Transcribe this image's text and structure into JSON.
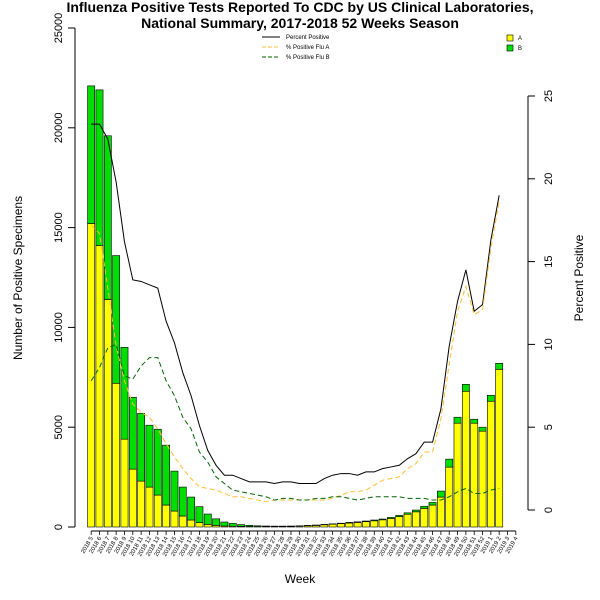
{
  "chart_data": {
    "type": "bar",
    "title_line1": "Influenza Positive Tests Reported To CDC by US Clinical Laboratories,",
    "title_line2": "National Summary, 2017-2018 52 Weeks Season",
    "xlabel": "Week",
    "ylabel": "Number of Positive Specimens",
    "ylabel_right": "Percent Positive",
    "ylim": [
      0,
      25000
    ],
    "ylim_right": [
      0,
      25
    ],
    "y_ticks": [
      "0",
      "5000",
      "10000",
      "15000",
      "20000",
      "25000"
    ],
    "y_ticks_right": [
      "0",
      "5",
      "10",
      "15",
      "20",
      "25"
    ],
    "categories": [
      "2018 5",
      "2018 6",
      "2018 7",
      "2018 8",
      "2018 9",
      "2018 10",
      "2018 11",
      "2018 12",
      "2018 13",
      "2018 14",
      "2018 15",
      "2018 16",
      "2018 17",
      "2018 18",
      "2018 19",
      "2018 20",
      "2018 21",
      "2018 22",
      "2018 23",
      "2018 24",
      "2018 25",
      "2018 26",
      "2018 27",
      "2018 28",
      "2018 29",
      "2018 30",
      "2018 31",
      "2018 32",
      "2018 33",
      "2018 34",
      "2018 35",
      "2018 36",
      "2018 37",
      "2018 38",
      "2018 39",
      "2018 40",
      "2018 41",
      "2018 42",
      "2018 43",
      "2018 44",
      "2018 45",
      "2018 46",
      "2018 47",
      "2018 48",
      "2018 49",
      "2018 50",
      "2018 51",
      "2018 52",
      "2019 1",
      "2019 2",
      "2019 3",
      "2019 4"
    ],
    "series": [
      {
        "name": "A",
        "color": "#ffff00",
        "values": [
          15200,
          14100,
          11400,
          7200,
          4400,
          2900,
          2300,
          2000,
          1600,
          1100,
          800,
          550,
          350,
          220,
          130,
          80,
          50,
          40,
          30,
          25,
          20,
          20,
          20,
          25,
          30,
          40,
          60,
          80,
          110,
          140,
          170,
          200,
          230,
          270,
          310,
          360,
          430,
          520,
          640,
          760,
          930,
          1100,
          1500,
          3000,
          5200,
          6800,
          5200,
          4800,
          6300,
          7900,
          0,
          0
        ]
      },
      {
        "name": "B",
        "color": "#00dd00",
        "values": [
          6900,
          7800,
          8200,
          6400,
          4600,
          3600,
          3400,
          3100,
          3300,
          3000,
          2000,
          1450,
          1150,
          800,
          520,
          330,
          200,
          140,
          90,
          60,
          40,
          30,
          25,
          20,
          20,
          20,
          20,
          20,
          20,
          20,
          20,
          30,
          30,
          30,
          40,
          40,
          50,
          60,
          70,
          90,
          110,
          130,
          300,
          400,
          300,
          350,
          200,
          200,
          300,
          300,
          0,
          0
        ]
      }
    ],
    "lines": [
      {
        "name": "Percent Positive",
        "color": "#000000",
        "dash": "solid",
        "values": [
          23.3,
          23.3,
          22.4,
          19.8,
          16.2,
          13.9,
          13.8,
          13.6,
          13.4,
          11.4,
          10.1,
          8.3,
          6.9,
          5.1,
          3.6,
          2.7,
          2.1,
          2.1,
          1.9,
          1.7,
          1.7,
          1.7,
          1.6,
          1.7,
          1.7,
          1.6,
          1.6,
          1.6,
          1.9,
          2.1,
          2.2,
          2.2,
          2.1,
          2.3,
          2.3,
          2.5,
          2.6,
          2.7,
          3.1,
          3.4,
          4.1,
          4.1,
          6.1,
          9.9,
          12.6,
          14.5,
          12.0,
          12.4,
          16.3,
          19.0,
          0,
          0
        ]
      },
      {
        "name": "% Positive Flu A",
        "color": "#ffbf33",
        "dash": "dashed",
        "values": [
          17.2,
          16.7,
          13.4,
          9.9,
          7.8,
          6.4,
          5.9,
          5.6,
          4.9,
          4.0,
          3.2,
          2.5,
          1.9,
          1.4,
          1.3,
          1.2,
          1.0,
          0.8,
          0.8,
          0.7,
          0.6,
          0.5,
          0.6,
          0.6,
          0.6,
          0.6,
          0.6,
          0.6,
          0.6,
          0.7,
          0.9,
          1.1,
          1.1,
          1.2,
          1.5,
          1.8,
          1.9,
          2.0,
          2.5,
          2.8,
          3.5,
          3.5,
          5.5,
          8.8,
          12.0,
          13.5,
          11.8,
          12.1,
          15.8,
          18.6,
          0,
          0
        ]
      },
      {
        "name": "% Positive Flu B",
        "color": "#006600",
        "dash": "dashed",
        "values": [
          7.8,
          8.6,
          9.8,
          10.0,
          8.1,
          7.9,
          8.7,
          9.2,
          9.2,
          7.8,
          6.9,
          5.6,
          4.9,
          3.5,
          2.9,
          2.0,
          1.6,
          1.2,
          1.1,
          1.0,
          0.9,
          0.8,
          0.6,
          0.7,
          0.7,
          0.6,
          0.6,
          0.7,
          0.7,
          0.8,
          0.8,
          0.7,
          0.6,
          0.7,
          0.8,
          0.8,
          0.8,
          0.8,
          0.7,
          0.7,
          0.7,
          0.6,
          0.6,
          0.8,
          1.1,
          1.3,
          1.0,
          1.0,
          1.2,
          1.3,
          0,
          0
        ]
      }
    ],
    "legend_lines": [
      "Percent Positive",
      "% Positive Flu A",
      "% Positive Flu B"
    ],
    "legend_bars": [
      "A",
      "B"
    ],
    "grid": false
  }
}
